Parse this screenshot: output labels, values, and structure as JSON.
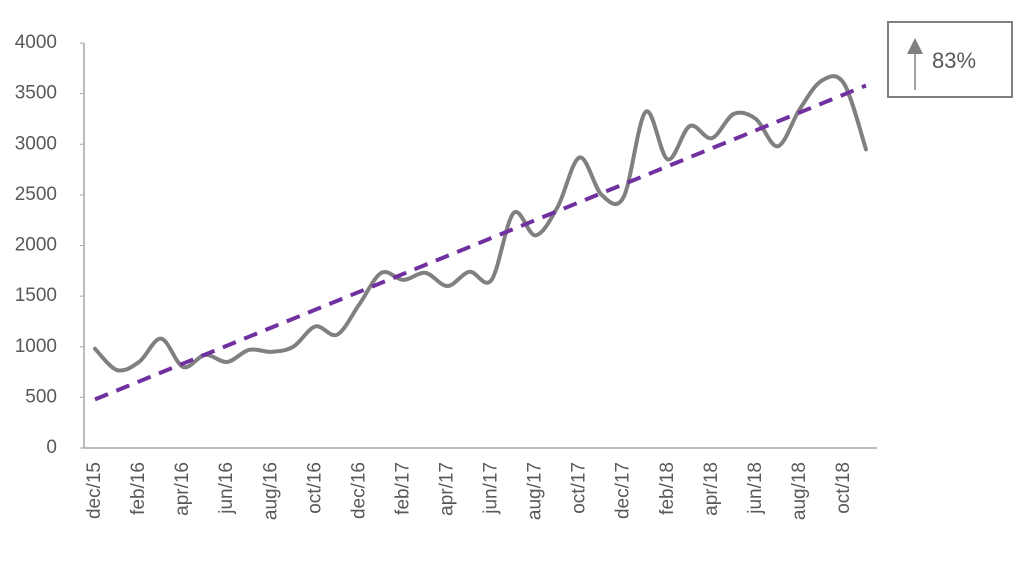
{
  "chart_data": {
    "type": "line",
    "categories": [
      "dec/15",
      null,
      "feb/16",
      null,
      "apr/16",
      null,
      "jun/16",
      null,
      "aug/16",
      null,
      "oct/16",
      null,
      "dec/16",
      null,
      "feb/17",
      null,
      "apr/17",
      null,
      "jun/17",
      null,
      "aug/17",
      null,
      "oct/17",
      null,
      "dec/17",
      null,
      "feb/18",
      null,
      "apr/18",
      null,
      "jun/18",
      null,
      "aug/18",
      null,
      "oct/18",
      null
    ],
    "values": [
      980,
      770,
      850,
      1080,
      800,
      920,
      850,
      970,
      950,
      1000,
      1200,
      1120,
      1420,
      1730,
      1660,
      1730,
      1600,
      1740,
      1660,
      2320,
      2100,
      2380,
      2870,
      2500,
      2480,
      3320,
      2850,
      3180,
      3060,
      3300,
      3250,
      2980,
      3350,
      3630,
      3600,
      2950
    ],
    "color": "#808080",
    "trend": {
      "values": [
        480,
        3580
      ],
      "color": "#7030a0"
    },
    "ylim": [
      0,
      4000
    ],
    "yticks": [
      0,
      500,
      1000,
      1500,
      2000,
      2500,
      3000,
      3500,
      4000
    ],
    "annotation": "83%"
  }
}
